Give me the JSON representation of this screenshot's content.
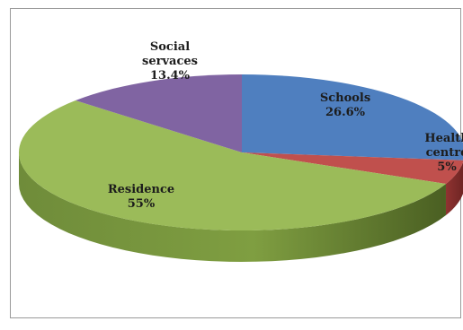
{
  "chart_data": {
    "type": "pie",
    "three_d": true,
    "slices": [
      {
        "name": "Schools",
        "label_lines": [
          "Schools",
          "26.6%"
        ],
        "value": 26.6,
        "color": "#4f7fbf"
      },
      {
        "name": "Health centre",
        "label_lines": [
          "Health",
          "centre",
          "5%"
        ],
        "value": 5,
        "color": "#c0504d"
      },
      {
        "name": "Residence",
        "label_lines": [
          "Residence",
          "55%"
        ],
        "value": 55,
        "color": "#9bbb59"
      },
      {
        "name": "Social servaces",
        "label_lines": [
          "Social",
          "servaces",
          "13.4%"
        ],
        "value": 13.4,
        "color": "#8064a2"
      }
    ],
    "legend": "none"
  }
}
